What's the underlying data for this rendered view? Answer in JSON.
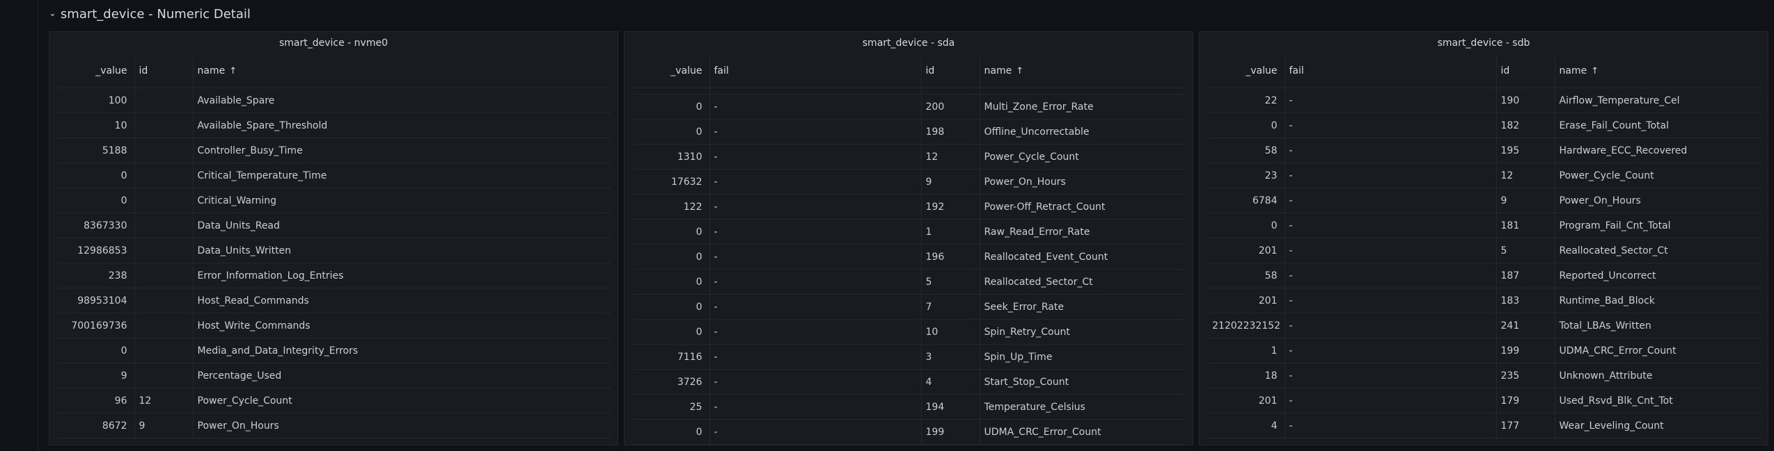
{
  "section": {
    "title": "smart_device - Numeric Detail"
  },
  "panels": {
    "nvme0": {
      "title": "smart_device - nvme0",
      "columns": [
        "_value",
        "id",
        "name"
      ],
      "rows": [
        [
          "100",
          "",
          "Available_Spare"
        ],
        [
          "10",
          "",
          "Available_Spare_Threshold"
        ],
        [
          "5188",
          "",
          "Controller_Busy_Time"
        ],
        [
          "0",
          "",
          "Critical_Temperature_Time"
        ],
        [
          "0",
          "",
          "Critical_Warning"
        ],
        [
          "8367330",
          "",
          "Data_Units_Read"
        ],
        [
          "12986853",
          "",
          "Data_Units_Written"
        ],
        [
          "238",
          "",
          "Error_Information_Log_Entries"
        ],
        [
          "98953104",
          "",
          "Host_Read_Commands"
        ],
        [
          "700169736",
          "",
          "Host_Write_Commands"
        ],
        [
          "0",
          "",
          "Media_and_Data_Integrity_Errors"
        ],
        [
          "9",
          "",
          "Percentage_Used"
        ],
        [
          "96",
          "12",
          "Power_Cycle_Count"
        ],
        [
          "8672",
          "9",
          "Power_On_Hours"
        ]
      ]
    },
    "sda": {
      "title": "smart_device - sda",
      "columns": [
        "_value",
        "fail",
        "id",
        "name"
      ],
      "rows": [
        [
          "0",
          "-",
          "200",
          "Multi_Zone_Error_Rate"
        ],
        [
          "0",
          "-",
          "198",
          "Offline_Uncorrectable"
        ],
        [
          "1310",
          "-",
          "12",
          "Power_Cycle_Count"
        ],
        [
          "17632",
          "-",
          "9",
          "Power_On_Hours"
        ],
        [
          "122",
          "-",
          "192",
          "Power-Off_Retract_Count"
        ],
        [
          "0",
          "-",
          "1",
          "Raw_Read_Error_Rate"
        ],
        [
          "0",
          "-",
          "196",
          "Reallocated_Event_Count"
        ],
        [
          "0",
          "-",
          "5",
          "Reallocated_Sector_Ct"
        ],
        [
          "0",
          "-",
          "7",
          "Seek_Error_Rate"
        ],
        [
          "0",
          "-",
          "10",
          "Spin_Retry_Count"
        ],
        [
          "7116",
          "-",
          "3",
          "Spin_Up_Time"
        ],
        [
          "3726",
          "-",
          "4",
          "Start_Stop_Count"
        ],
        [
          "25",
          "-",
          "194",
          "Temperature_Celsius"
        ],
        [
          "0",
          "-",
          "199",
          "UDMA_CRC_Error_Count"
        ]
      ]
    },
    "sdb": {
      "title": "smart_device - sdb",
      "columns": [
        "_value",
        "fail",
        "id",
        "name"
      ],
      "rows": [
        [
          "22",
          "-",
          "190",
          "Airflow_Temperature_Cel"
        ],
        [
          "0",
          "-",
          "182",
          "Erase_Fail_Count_Total"
        ],
        [
          "58",
          "-",
          "195",
          "Hardware_ECC_Recovered"
        ],
        [
          "23",
          "-",
          "12",
          "Power_Cycle_Count"
        ],
        [
          "6784",
          "-",
          "9",
          "Power_On_Hours"
        ],
        [
          "0",
          "-",
          "181",
          "Program_Fail_Cnt_Total"
        ],
        [
          "201",
          "-",
          "5",
          "Reallocated_Sector_Ct"
        ],
        [
          "58",
          "-",
          "187",
          "Reported_Uncorrect"
        ],
        [
          "201",
          "-",
          "183",
          "Runtime_Bad_Block"
        ],
        [
          "21202232152",
          "-",
          "241",
          "Total_LBAs_Written"
        ],
        [
          "1",
          "-",
          "199",
          "UDMA_CRC_Error_Count"
        ],
        [
          "18",
          "-",
          "235",
          "Unknown_Attribute"
        ],
        [
          "201",
          "-",
          "179",
          "Used_Rsvd_Blk_Cnt_Tot"
        ],
        [
          "4",
          "-",
          "177",
          "Wear_Leveling_Count"
        ]
      ]
    }
  },
  "icons": {
    "collapse": "chevron-down-icon",
    "sort": "sort-ascending-icon"
  }
}
